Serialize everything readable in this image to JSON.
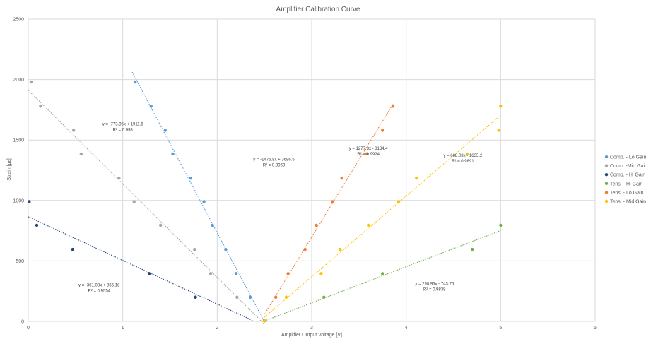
{
  "chart_data": {
    "type": "scatter",
    "title": "Amplifier Calibration Curve",
    "xlabel": "Amplifier Output Voltage [V]",
    "ylabel": "Strain [µε]",
    "xlim": [
      0,
      6
    ],
    "ylim": [
      0,
      2500
    ],
    "x_ticks": [
      "0",
      "1",
      "2",
      "3",
      "4",
      "5",
      "6"
    ],
    "y_ticks": [
      "0",
      "500",
      "1000",
      "1500",
      "2000",
      "2500"
    ],
    "grid": true,
    "legend_position": "right",
    "series": [
      {
        "name": "Comp. - Lo Gain",
        "color": "#5b9bd5",
        "points": [
          [
            1.13,
            1980
          ],
          [
            1.3,
            1780
          ],
          [
            1.45,
            1580
          ],
          [
            1.53,
            1385
          ],
          [
            1.72,
            1185
          ],
          [
            1.86,
            990
          ],
          [
            1.95,
            795
          ],
          [
            2.09,
            595
          ],
          [
            2.2,
            395
          ],
          [
            2.35,
            200
          ],
          [
            2.5,
            5
          ]
        ],
        "trend": {
          "slope": -1476.8,
          "intercept": 3686.5,
          "x_range": [
            1.1,
            2.5
          ]
        },
        "equation": "y = -1476.8x + 3686.5",
        "r2": "R² = 0.9969"
      },
      {
        "name": "Comp. -Mid Gain",
        "color": "#a5a5a5",
        "points": [
          [
            0.03,
            1980
          ],
          [
            0.13,
            1780
          ],
          [
            0.48,
            1580
          ],
          [
            0.56,
            1385
          ],
          [
            0.96,
            1185
          ],
          [
            1.12,
            990
          ],
          [
            1.4,
            795
          ],
          [
            1.76,
            595
          ],
          [
            1.93,
            395
          ],
          [
            2.21,
            200
          ],
          [
            2.5,
            5
          ]
        ],
        "trend": {
          "slope": -773.96,
          "intercept": 1911.6,
          "x_range": [
            0,
            2.5
          ]
        },
        "equation": "y = -773.96x + 1911.6",
        "r2": "R² = 0.993"
      },
      {
        "name": "Comp. - Hi Gain",
        "color": "#264478",
        "points": [
          [
            0.01,
            990
          ],
          [
            0.09,
            795
          ],
          [
            0.47,
            595
          ],
          [
            1.28,
            395
          ],
          [
            1.77,
            200
          ],
          [
            2.5,
            5
          ]
        ],
        "trend": {
          "slope": -361.08,
          "intercept": 865.18,
          "x_range": [
            0,
            2.4
          ]
        },
        "equation": "y = -361.08x + 865.18",
        "r2": "R² = 0.9554"
      },
      {
        "name": "Tens. - Hi Gain",
        "color": "#70ad47",
        "points": [
          [
            2.5,
            5
          ],
          [
            3.13,
            200
          ],
          [
            3.75,
            395
          ],
          [
            4.7,
            595
          ],
          [
            5,
            795
          ]
        ],
        "trend": {
          "slope": 298.96,
          "intercept": -743.76,
          "x_range": [
            2.5,
            5
          ]
        },
        "equation": "y = 298.96x - 743.76",
        "r2": "R² = 0.9838"
      },
      {
        "name": "Tens. - Lo Gain",
        "color": "#ed7d31",
        "points": [
          [
            2.5,
            5
          ],
          [
            2.62,
            200
          ],
          [
            2.75,
            395
          ],
          [
            2.93,
            595
          ],
          [
            3.05,
            795
          ],
          [
            3.22,
            990
          ],
          [
            3.32,
            1185
          ],
          [
            3.58,
            1385
          ],
          [
            3.75,
            1580
          ],
          [
            3.86,
            1780
          ]
        ],
        "trend": {
          "slope": 1277.3,
          "intercept": -3134.4,
          "x_range": [
            2.5,
            3.86
          ]
        },
        "equation": "y = 1277.3x - 3134.4",
        "r2": "R² = 0.9924"
      },
      {
        "name": "Tens. - Mid Gain",
        "color": "#ffc000",
        "points": [
          [
            2.5,
            5
          ],
          [
            2.73,
            200
          ],
          [
            3.1,
            395
          ],
          [
            3.3,
            595
          ],
          [
            3.6,
            795
          ],
          [
            3.92,
            990
          ],
          [
            4.11,
            1185
          ],
          [
            4.65,
            1385
          ],
          [
            4.98,
            1580
          ],
          [
            5,
            1780
          ]
        ],
        "trend": {
          "slope": 668.03,
          "intercept": -1635.2,
          "x_range": [
            2.5,
            5
          ]
        },
        "equation": "y = 668.03x - 1635.2",
        "r2": "R² = 0.9891"
      }
    ]
  }
}
